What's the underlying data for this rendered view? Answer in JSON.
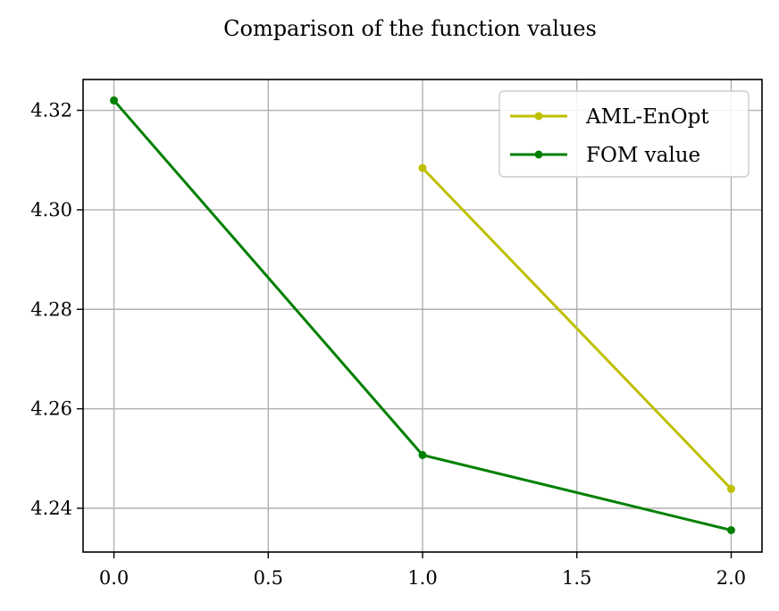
{
  "chart_data": {
    "type": "line",
    "title": "Comparison of the function values",
    "xlabel": "",
    "ylabel": "",
    "xlim": [
      -0.1,
      2.1
    ],
    "ylim": [
      4.2312,
      4.3262
    ],
    "xticks": [
      0.0,
      0.5,
      1.0,
      1.5,
      2.0
    ],
    "xtick_labels": [
      "0.0",
      "0.5",
      "1.0",
      "1.5",
      "2.0"
    ],
    "yticks": [
      4.24,
      4.26,
      4.28,
      4.3,
      4.32
    ],
    "ytick_labels": [
      "4.24",
      "4.26",
      "4.28",
      "4.30",
      "4.32"
    ],
    "grid": true,
    "legend_position": "top-right",
    "series": [
      {
        "name": "AML-EnOpt",
        "color": "#bfbf00",
        "x": [
          1,
          2
        ],
        "y": [
          4.3084,
          4.2439
        ]
      },
      {
        "name": "FOM value",
        "color": "#008000",
        "x": [
          0,
          1,
          2
        ],
        "y": [
          4.322,
          4.2507,
          4.2356
        ]
      }
    ]
  }
}
